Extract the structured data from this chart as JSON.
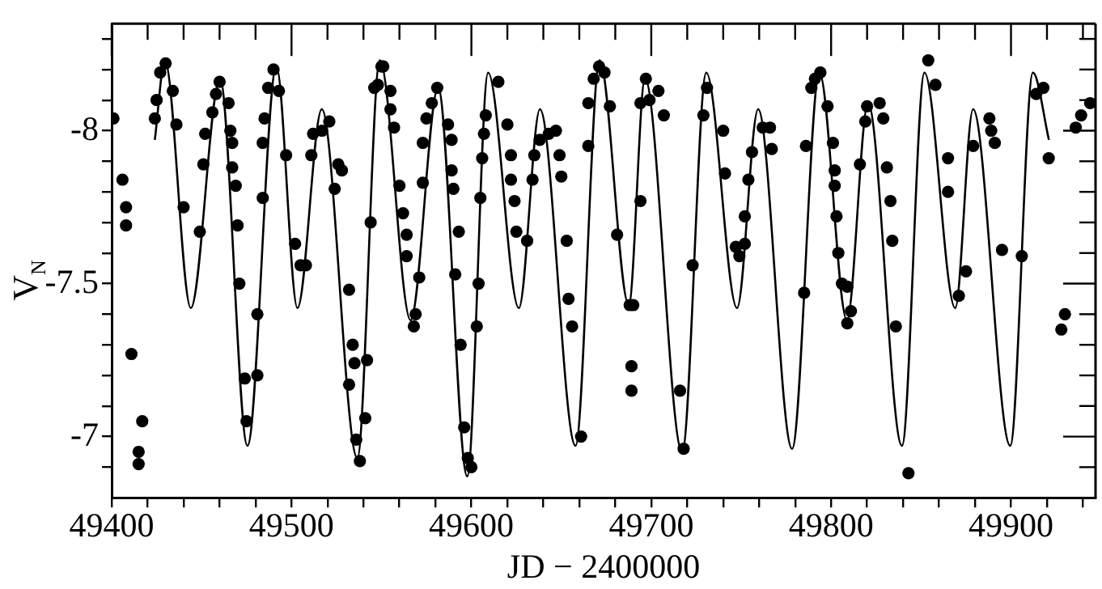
{
  "chart_data": {
    "type": "scatter",
    "xlabel": "JD − 2400000",
    "ylabel": "V$_{N}$",
    "xlim": [
      49400,
      49947
    ],
    "ylim": [
      -6.8,
      -8.35
    ],
    "xticks": [
      49400,
      {
        "value": 49420,
        "label": null
      },
      {
        "value": 49440,
        "label": null
      },
      {
        "value": 49460,
        "label": null
      },
      {
        "value": 49480,
        "label": null
      },
      49500,
      {
        "value": 49520,
        "label": null
      },
      {
        "value": 49540,
        "label": null
      },
      {
        "value": 49560,
        "label": null
      },
      {
        "value": 49580,
        "label": null
      },
      49600,
      {
        "value": 49620,
        "label": null
      },
      {
        "value": 49640,
        "label": null
      },
      {
        "value": 49660,
        "label": null
      },
      {
        "value": 49680,
        "label": null
      },
      49700,
      {
        "value": 49720,
        "label": null
      },
      {
        "value": 49740,
        "label": null
      },
      {
        "value": 49760,
        "label": null
      },
      {
        "value": 49780,
        "label": null
      },
      49800,
      {
        "value": 49820,
        "label": null
      },
      {
        "value": 49840,
        "label": null
      },
      {
        "value": 49860,
        "label": null
      },
      {
        "value": 49880,
        "label": null
      },
      49900,
      {
        "value": 49920,
        "label": null
      },
      {
        "value": 49940,
        "label": null
      }
    ],
    "yticks": [
      {
        "value": -8.3,
        "label": null
      },
      {
        "value": -8.2,
        "label": null
      },
      {
        "value": -8.1,
        "label": null
      },
      -8,
      {
        "value": -7.9,
        "label": null
      },
      {
        "value": -7.8,
        "label": null
      },
      {
        "value": -7.7,
        "label": null
      },
      {
        "value": -7.6,
        "label": null
      },
      -7.5,
      {
        "value": -7.4,
        "label": null
      },
      {
        "value": -7.3,
        "label": null
      },
      {
        "value": -7.2,
        "label": null
      },
      {
        "value": -7.1,
        "label": null
      },
      -7,
      {
        "value": -6.9,
        "label": null
      }
    ],
    "grid": false,
    "legend": false,
    "series": [
      {
        "type": "scatter",
        "marker": "circle",
        "color": "#000000",
        "x": [
          49401,
          49406,
          49408,
          49408,
          49411,
          49417,
          49415,
          49415,
          49424,
          49425,
          49427,
          49430,
          49434,
          49436,
          49440,
          49449,
          49451,
          49452,
          49456,
          49458,
          49460,
          49465,
          49466,
          49467,
          49467,
          49469,
          49470,
          49471,
          49474,
          49475,
          49481,
          49481,
          49484,
          49484,
          49485,
          49487,
          49490,
          49493,
          49497,
          49502,
          49505,
          49508,
          49511,
          49512,
          49517,
          49521,
          49526,
          49528,
          49524,
          49532,
          49534,
          49535,
          49532,
          49536,
          49538,
          49541,
          49542,
          49544,
          49546,
          49550,
          49551,
          49548,
          49555,
          49555,
          49557,
          49560,
          49562,
          49564,
          49564,
          49569,
          49568,
          49571,
          49573,
          49573,
          49575,
          49578,
          49581,
          49587,
          49589,
          49589,
          49590,
          49593,
          49591,
          49594,
          49596,
          49598,
          49600,
          49603,
          49604,
          49605,
          49606,
          49607,
          49608,
          49615,
          49620,
          49622,
          49622,
          49624,
          49625,
          49631,
          49634,
          49635,
          49638,
          49643,
          49647,
          49649,
          49650,
          49653,
          49654,
          49656,
          49661,
          49665,
          49665,
          49668,
          49671,
          49674,
          49677,
          49681,
          49688,
          49690,
          49689,
          49689,
          49694,
          49694,
          49697,
          49699,
          49704,
          49707,
          49716,
          49718,
          49723,
          49729,
          49731,
          49740,
          49741,
          49747,
          49749,
          49752,
          49752,
          49754,
          49756,
          49762,
          49766,
          49767,
          49785,
          49786,
          49789,
          49791,
          49794,
          49798,
          49801,
          49802,
          49802,
          49803,
          49804,
          49806,
          49809,
          49811,
          49809,
          49816,
          49819,
          49820,
          49827,
          49829,
          49831,
          49833,
          49834,
          49836,
          49843,
          49854,
          49858,
          49865,
          49865,
          49875,
          49871,
          49879,
          49888,
          49889,
          49891,
          49895,
          49906,
          49914,
          49918,
          49921,
          49928,
          49930,
          49936,
          49939,
          49944
        ],
        "values": [
          -8.04,
          -7.84,
          -7.75,
          -7.69,
          -7.27,
          -7.05,
          -6.95,
          -6.91,
          -8.04,
          -8.1,
          -8.19,
          -8.22,
          -8.13,
          -8.02,
          -7.75,
          -7.67,
          -7.89,
          -7.99,
          -8.06,
          -8.12,
          -8.16,
          -8.09,
          -8,
          -7.96,
          -7.88,
          -7.82,
          -7.69,
          -7.5,
          -7.19,
          -7.05,
          -7.2,
          -7.4,
          -7.78,
          -7.96,
          -8.04,
          -8.14,
          -8.2,
          -8.13,
          -7.92,
          -7.63,
          -7.56,
          -7.56,
          -7.92,
          -7.99,
          -8,
          -8.03,
          -7.89,
          -7.87,
          -7.81,
          -7.48,
          -7.3,
          -7.24,
          -7.17,
          -6.99,
          -6.92,
          -7.06,
          -7.25,
          -7.7,
          -8.14,
          -8.21,
          -8.21,
          -8.15,
          -8.13,
          -8.07,
          -8.01,
          -7.82,
          -7.73,
          -7.66,
          -7.59,
          -7.4,
          -7.36,
          -7.52,
          -7.83,
          -7.96,
          -8.04,
          -8.09,
          -8.14,
          -8.02,
          -7.97,
          -7.87,
          -7.81,
          -7.67,
          -7.53,
          -7.3,
          -7.03,
          -6.93,
          -6.9,
          -7.36,
          -7.5,
          -7.78,
          -7.91,
          -7.99,
          -8.05,
          -8.16,
          -8.02,
          -7.92,
          -7.84,
          -7.77,
          -7.67,
          -7.64,
          -7.84,
          -7.92,
          -7.97,
          -7.99,
          -8,
          -7.92,
          -7.85,
          -7.64,
          -7.45,
          -7.36,
          -7,
          -7.95,
          -8.09,
          -8.17,
          -8.21,
          -8.19,
          -8.08,
          -7.66,
          -7.43,
          -7.43,
          -7.23,
          -7.15,
          -7.77,
          -8.09,
          -8.17,
          -8.1,
          -8.13,
          -8.05,
          -7.15,
          -6.96,
          -7.56,
          -8.05,
          -8.14,
          -8,
          -7.86,
          -7.62,
          -7.59,
          -7.63,
          -7.72,
          -7.84,
          -7.93,
          -8.01,
          -8.01,
          -7.94,
          -7.47,
          -7.95,
          -8.14,
          -8.17,
          -8.19,
          -8.08,
          -7.96,
          -7.87,
          -7.82,
          -7.72,
          -7.6,
          -7.5,
          -7.49,
          -7.41,
          -7.37,
          -7.89,
          -8.03,
          -8.08,
          -8.09,
          -8.04,
          -7.88,
          -7.77,
          -7.64,
          -7.36,
          -6.88,
          -8.23,
          -8.15,
          -7.91,
          -7.8,
          -7.54,
          -7.46,
          -7.95,
          -8.04,
          -8,
          -7.96,
          -7.61,
          -7.59,
          -8.12,
          -8.14,
          -7.91,
          -7.35,
          -7.4,
          -8.01,
          -8.05,
          -8.09
        ]
      },
      {
        "type": "line",
        "marker": "none",
        "line_style": "solid",
        "color": "#000000",
        "x": [
          49424,
          49429.6,
          49444,
          49460.2,
          49475.5,
          49491.6,
          49503.3,
          49516.8,
          49536.6,
          49549.1,
          49566.2,
          49581.5,
          49597.7,
          49609.3,
          49626.4,
          49638.1,
          49657.9,
          49671.3,
          49687.5,
          49696.5,
          49717.2,
          49730.6,
          49747.7,
          49759.4,
          49778.3,
          49793.5,
          49808.8,
          49820.5,
          49839.4,
          49851.9,
          49869,
          49878.9,
          49899.6,
          49912.2,
          49921.1
        ],
        "values": [
          -7.97,
          -8.23,
          -7.42,
          -8.17,
          -6.97,
          -8.21,
          -7.42,
          -8.07,
          -6.93,
          -8.23,
          -7.38,
          -8.14,
          -6.87,
          -8.19,
          -7.42,
          -8.07,
          -6.97,
          -8.23,
          -7.43,
          -8.17,
          -6.95,
          -8.19,
          -7.42,
          -8.07,
          -6.96,
          -8.19,
          -7.38,
          -8.09,
          -6.97,
          -8.19,
          -7.42,
          -8.07,
          -6.97,
          -8.19,
          -7.97
        ]
      }
    ]
  }
}
